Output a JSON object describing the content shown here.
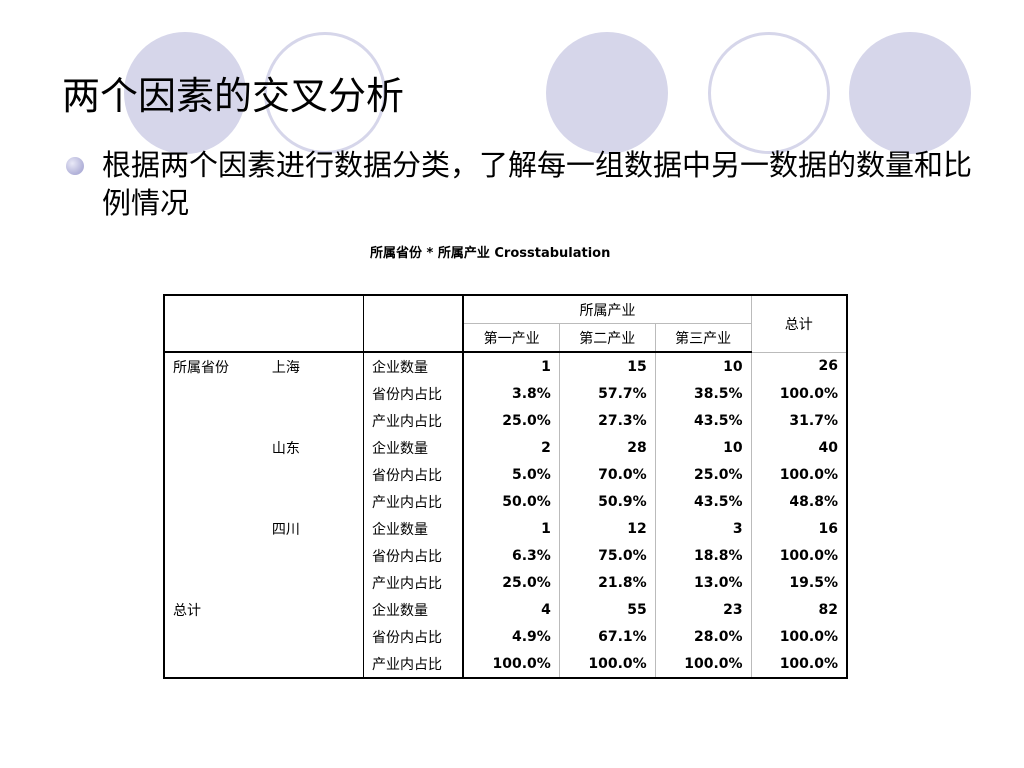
{
  "slide": {
    "title": "两个因素的交叉分析",
    "bullet": "根据两个因素进行数据分类，了解每一组数据中另一数据的数量和比例情况"
  },
  "table": {
    "caption": "所属省份  *  所属产业  Crosstabulation",
    "group_header": "所属产业",
    "columns": [
      "第一产业",
      "第二产业",
      "第三产业",
      "总计"
    ],
    "row_group_label": "所属省份",
    "groups": [
      {
        "name": "上海",
        "rows": [
          {
            "label": "企业数量",
            "values": [
              "1",
              "15",
              "10",
              "26"
            ]
          },
          {
            "label": "省份内占比",
            "values": [
              "3.8%",
              "57.7%",
              "38.5%",
              "100.0%"
            ]
          },
          {
            "label": "产业内占比",
            "values": [
              "25.0%",
              "27.3%",
              "43.5%",
              "31.7%"
            ]
          }
        ]
      },
      {
        "name": "山东",
        "rows": [
          {
            "label": "企业数量",
            "values": [
              "2",
              "28",
              "10",
              "40"
            ]
          },
          {
            "label": "省份内占比",
            "values": [
              "5.0%",
              "70.0%",
              "25.0%",
              "100.0%"
            ]
          },
          {
            "label": "产业内占比",
            "values": [
              "50.0%",
              "50.9%",
              "43.5%",
              "48.8%"
            ]
          }
        ]
      },
      {
        "name": "四川",
        "rows": [
          {
            "label": "企业数量",
            "values": [
              "1",
              "12",
              "3",
              "16"
            ]
          },
          {
            "label": "省份内占比",
            "values": [
              "6.3%",
              "75.0%",
              "18.8%",
              "100.0%"
            ]
          },
          {
            "label": "产业内占比",
            "values": [
              "25.0%",
              "21.8%",
              "13.0%",
              "19.5%"
            ]
          }
        ]
      }
    ],
    "total": {
      "label": "总计",
      "rows": [
        {
          "label": "企业数量",
          "values": [
            "4",
            "55",
            "23",
            "82"
          ]
        },
        {
          "label": "省份内占比",
          "values": [
            "4.9%",
            "67.1%",
            "28.0%",
            "100.0%"
          ]
        },
        {
          "label": "产业内占比",
          "values": [
            "100.0%",
            "100.0%",
            "100.0%",
            "100.0%"
          ]
        }
      ]
    }
  },
  "theme": {
    "circle_color": "#d6d6ea",
    "bullet_color": "#b8b8dc"
  }
}
